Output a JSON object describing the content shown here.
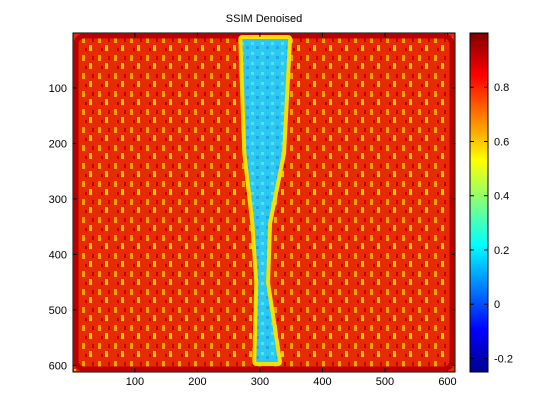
{
  "chart_data": {
    "type": "heatmap",
    "title": "SSIM Denoised",
    "xlabel": "",
    "ylabel": "",
    "x_ticks": [
      100,
      200,
      300,
      400,
      500,
      600
    ],
    "y_ticks": [
      100,
      200,
      300,
      400,
      500,
      600
    ],
    "xlim": [
      1,
      612
    ],
    "ylim": [
      1,
      612
    ],
    "colorbar": {
      "colormap": "jet",
      "ticks": [
        -0.2,
        0,
        0.2,
        0.4,
        0.6,
        0.8
      ],
      "tick_labels": [
        "-0.2",
        "0",
        "0.2",
        "0.4",
        "0.6",
        "0.8"
      ],
      "range": [
        -0.25,
        1.0
      ]
    },
    "notes_values": {
      "background_ssim": 0.93,
      "center_stripe_ssim": 0.28,
      "center_stripe_x_range": [
        275,
        345
      ]
    }
  }
}
